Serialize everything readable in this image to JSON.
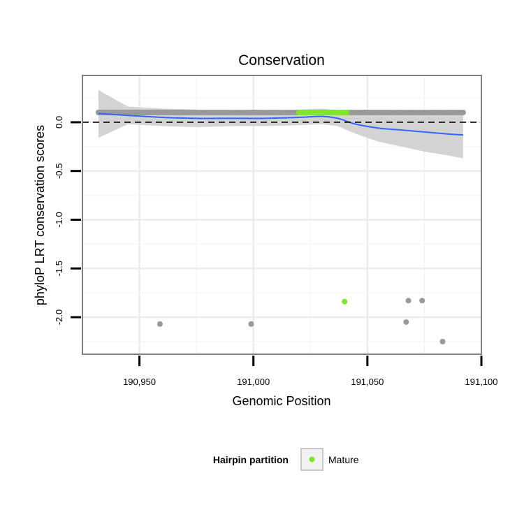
{
  "chart_data": {
    "type": "scatter",
    "title": "Conservation",
    "xlabel": "Genomic Position",
    "ylabel": "phyloP LRT conservation scores",
    "xlim": [
      190925,
      191100
    ],
    "ylim": [
      -2.38,
      0.48
    ],
    "x_ticks": [
      190950,
      191000,
      191050,
      191100
    ],
    "x_tick_labels": [
      "190,950",
      "191,000",
      "191,050",
      "191,100"
    ],
    "y_ticks": [
      0.0,
      -0.5,
      -1.0,
      -1.5,
      -2.0
    ],
    "y_tick_labels": [
      "0.0",
      "-0.5",
      "-1.0",
      "-1.5",
      "-2.0"
    ],
    "grid": true,
    "reference_line": {
      "y": 0.0,
      "style": "dashed",
      "color": "#000000"
    },
    "points_background": {
      "color": "#999999",
      "x_start": 190932,
      "x_end": 191092,
      "x_step": 1,
      "y": 0.1,
      "mature_x_start": 191020,
      "mature_x_end": 191042,
      "outliers": [
        {
          "x": 190959,
          "y": -2.07
        },
        {
          "x": 190999,
          "y": -2.07
        },
        {
          "x": 191067,
          "y": -2.05
        },
        {
          "x": 191068,
          "y": -1.83
        },
        {
          "x": 191074,
          "y": -1.83
        },
        {
          "x": 191083,
          "y": -2.25
        }
      ]
    },
    "series": [
      {
        "name": "Mature",
        "color": "#7FE52B",
        "points": [
          {
            "x": 191040,
            "y": -1.84
          }
        ]
      }
    ],
    "smooth": {
      "color": "#3366FF",
      "ribbon_color": "#D3D3D3",
      "x": [
        190932,
        190945,
        190960,
        190975,
        190990,
        191005,
        191020,
        191030,
        191037,
        191045,
        191055,
        191065,
        191075,
        191085,
        191092
      ],
      "y": [
        0.09,
        0.07,
        0.05,
        0.04,
        0.04,
        0.04,
        0.05,
        0.06,
        0.04,
        -0.02,
        -0.06,
        -0.08,
        -0.1,
        -0.12,
        -0.13
      ],
      "upper": [
        0.33,
        0.16,
        0.14,
        0.13,
        0.12,
        0.12,
        0.13,
        0.14,
        0.12,
        0.09,
        0.09,
        0.09,
        0.1,
        0.11,
        0.12
      ],
      "lower": [
        -0.16,
        -0.02,
        -0.04,
        -0.05,
        -0.04,
        -0.04,
        -0.03,
        -0.02,
        -0.04,
        -0.12,
        -0.2,
        -0.25,
        -0.3,
        -0.34,
        -0.37
      ]
    },
    "legend": {
      "position": "bottom",
      "title": "Hairpin partition",
      "entries": [
        {
          "label": "Mature",
          "color": "#7FE52B"
        }
      ]
    }
  }
}
